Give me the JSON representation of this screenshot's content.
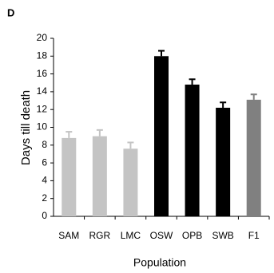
{
  "chart_data": {
    "type": "bar",
    "panel_label": "D",
    "categories": [
      "SAM",
      "RGR",
      "LMC",
      "OSW",
      "OPB",
      "SWB",
      "F1"
    ],
    "values": [
      8.8,
      9.0,
      7.6,
      18.0,
      14.8,
      12.2,
      13.1
    ],
    "errors": [
      0.7,
      0.7,
      0.7,
      0.6,
      0.6,
      0.6,
      0.6
    ],
    "colors": [
      "#c4c4c4",
      "#c4c4c4",
      "#c4c4c4",
      "#000000",
      "#000000",
      "#000000",
      "#808080"
    ],
    "ylabel": "Days till death",
    "xlabel": "Population",
    "ylim": [
      0,
      20
    ],
    "yticks": [
      0,
      2,
      4,
      6,
      8,
      10,
      12,
      14,
      16,
      18,
      20
    ]
  }
}
